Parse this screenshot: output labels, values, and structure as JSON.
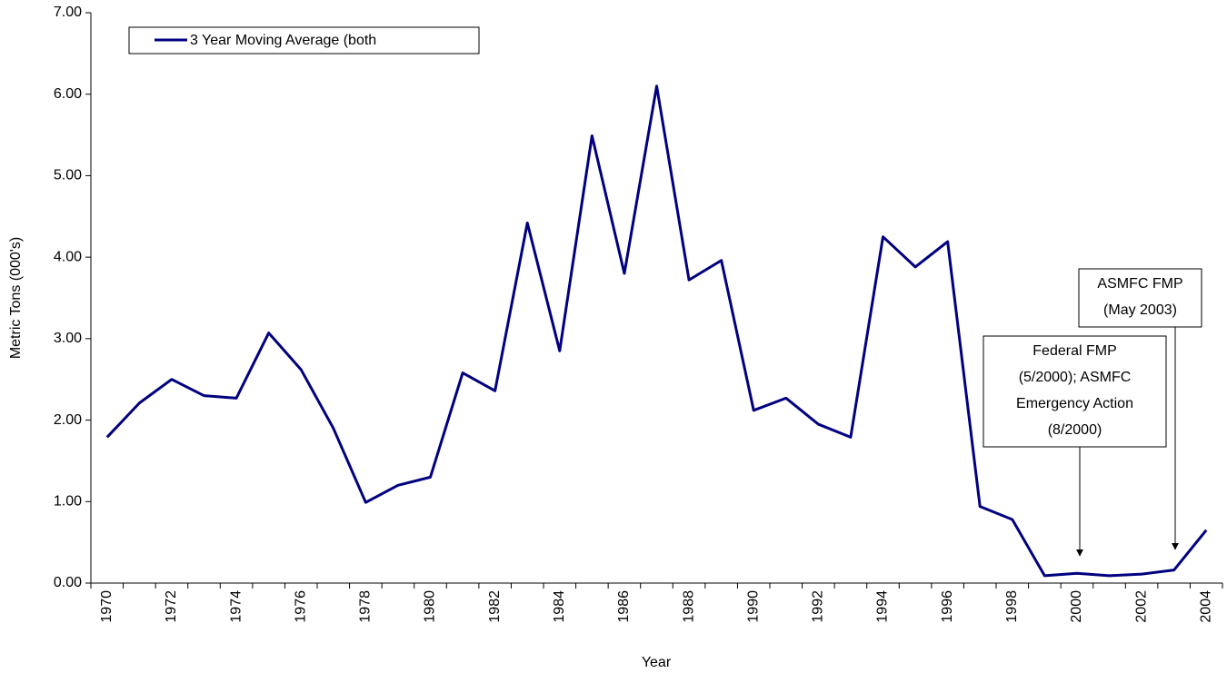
{
  "chart_data": {
    "type": "line",
    "y_label": "Metric Tons (000's)",
    "x_label": "Year",
    "categories": [
      "1970",
      null,
      "1972",
      null,
      "1974",
      null,
      "1976",
      null,
      "1978",
      null,
      "1980",
      null,
      "1982",
      null,
      "1984",
      null,
      "1986",
      null,
      "1988",
      null,
      "1990",
      null,
      "1992",
      null,
      "1994",
      null,
      "1996",
      null,
      "1998",
      null,
      "2000",
      null,
      "2002",
      null,
      "2004"
    ],
    "series": [
      {
        "name": "3 Year Moving Average (both",
        "color": "#000080",
        "values": [
          1.79,
          2.21,
          2.5,
          2.3,
          2.27,
          3.07,
          2.62,
          1.9,
          0.99,
          1.2,
          1.3,
          2.58,
          2.36,
          4.42,
          2.85,
          5.49,
          3.8,
          6.1,
          3.72,
          3.96,
          2.12,
          2.27,
          1.95,
          1.79,
          4.25,
          3.88,
          4.19,
          0.94,
          0.78,
          0.09,
          0.12,
          0.09,
          0.11,
          0.16,
          0.65
        ]
      }
    ],
    "ylim": [
      0,
      7
    ],
    "yticks": [
      {
        "value": 0,
        "label": "0.00"
      },
      {
        "value": 1,
        "label": "1.00"
      },
      {
        "value": 2,
        "label": "2.00"
      },
      {
        "value": 3,
        "label": "3.00"
      },
      {
        "value": 4,
        "label": "4.00"
      },
      {
        "value": 5,
        "label": "5.00"
      },
      {
        "value": 6,
        "label": "6.00"
      },
      {
        "value": 7,
        "label": "7.00"
      }
    ],
    "grid": false,
    "legend": "upper left",
    "annotations": [
      {
        "lines": [
          "Federal FMP",
          "(5/2000); ASMFC",
          "Emergency Action",
          "(8/2000)"
        ]
      },
      {
        "lines": [
          "ASMFC FMP",
          "(May 2003)"
        ]
      }
    ]
  }
}
